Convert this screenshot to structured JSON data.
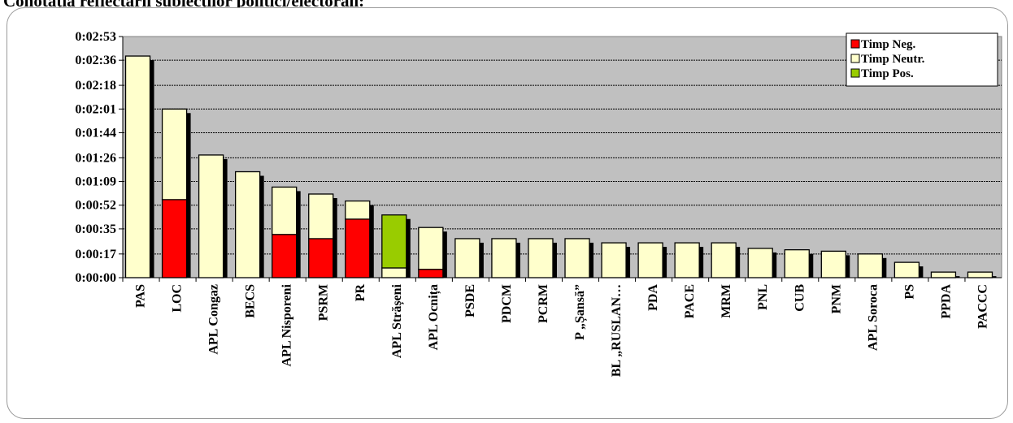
{
  "title": "Conotația reflectării subiecților politici/electorali:",
  "chart_data": {
    "type": "bar",
    "stacked": true,
    "title": "Conotația reflectării subiecților politici/electorali:",
    "xlabel": "",
    "ylabel": "",
    "y_unit": "seconds (h:mm:ss)",
    "ylim": [
      0,
      173
    ],
    "yticks": [
      0,
      17,
      35,
      52,
      69,
      86,
      104,
      121,
      138,
      156,
      173
    ],
    "ytick_labels": [
      "0:00:00",
      "0:00:17",
      "0:00:35",
      "0:00:52",
      "0:01:09",
      "0:01:26",
      "0:01:44",
      "0:02:01",
      "0:02:18",
      "0:02:36",
      "0:02:53"
    ],
    "grid": true,
    "legend_position": "top-right",
    "categories": [
      "PAS",
      "LOC",
      "APL Congaz",
      "BECS",
      "APL Nisporeni",
      "PSRM",
      "PR",
      "APL Strășeni",
      "APL Ocnița",
      "PSDE",
      "PDCM",
      "PCRM",
      "P „Șansă”",
      "BL „RUSLAN…",
      "PDA",
      "PACE",
      "MRM",
      "PNL",
      "CUB",
      "PNM",
      "APL Soroca",
      "PS",
      "PPDA",
      "PACCC"
    ],
    "series": [
      {
        "name": "Timp Neg.",
        "color": "#ff0000",
        "values": [
          0,
          56,
          0,
          0,
          31,
          28,
          42,
          0,
          6,
          0,
          0,
          0,
          0,
          0,
          0,
          0,
          0,
          0,
          0,
          0,
          0,
          0,
          0,
          0
        ]
      },
      {
        "name": "Timp Neutr.",
        "color": "#ffffcc",
        "values": [
          159,
          65,
          88,
          76,
          34,
          32,
          13,
          7,
          30,
          28,
          28,
          28,
          28,
          25,
          25,
          25,
          25,
          21,
          20,
          19,
          17,
          11,
          4,
          4
        ]
      },
      {
        "name": "Timp Pos.",
        "color": "#99cc00",
        "values": [
          0,
          0,
          0,
          0,
          0,
          0,
          0,
          38,
          0,
          0,
          0,
          0,
          0,
          0,
          0,
          0,
          0,
          0,
          0,
          0,
          0,
          0,
          0,
          0
        ]
      }
    ]
  },
  "colors": {
    "plot_background": "#c0c0c0",
    "frame_border": "#9a9a9a",
    "bar_shadow": "#000000"
  }
}
